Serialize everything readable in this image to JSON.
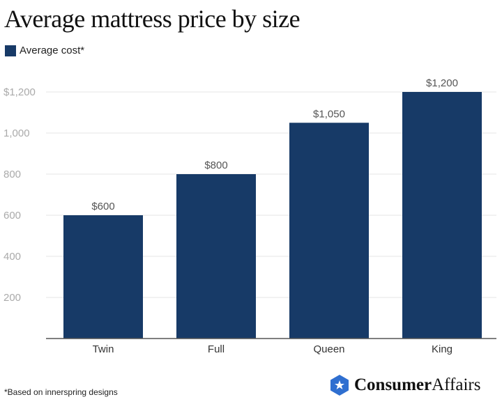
{
  "chart_data": {
    "type": "bar",
    "title": "Average mattress price by size",
    "categories": [
      "Twin",
      "Full",
      "Queen",
      "King"
    ],
    "series": [
      {
        "name": "Average cost*",
        "values": [
          600,
          800,
          1050,
          1200
        ]
      }
    ],
    "data_labels": [
      "$600",
      "$800",
      "$1,050",
      "$1,200"
    ],
    "yticks": [
      200,
      400,
      600,
      800,
      1000,
      1200
    ],
    "ytick_labels": [
      "200",
      "400",
      "600",
      "800",
      "1,000",
      "$1,200"
    ],
    "ylim": [
      0,
      1200
    ],
    "grid": true,
    "legend": "top-left",
    "xlabel": "",
    "ylabel": "",
    "bar_color": "#173a67"
  },
  "footnote": "*Based on innerspring designs",
  "logo": {
    "bold": "Consumer",
    "regular": "Affairs",
    "color": "#2f6fd0"
  }
}
